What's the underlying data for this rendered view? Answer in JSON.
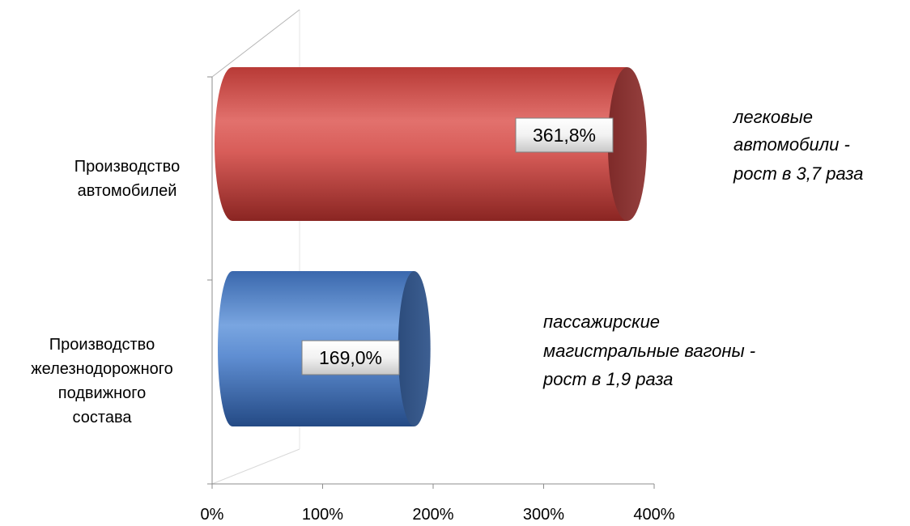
{
  "chart_data": {
    "type": "bar",
    "orientation": "horizontal",
    "style": "3d-cylinder",
    "categories": [
      "Производство автомобилей",
      "Производство железнодорожного подвижного состава"
    ],
    "category_lines": [
      [
        "Производство",
        "автомобилей"
      ],
      [
        "Производство",
        "железнодорожного",
        "подвижного",
        "состава"
      ]
    ],
    "values": [
      361.8,
      169.0
    ],
    "data_labels": [
      "361,8%",
      "169,0%"
    ],
    "bar_colors": [
      "#c94b47",
      "#4a79bf"
    ],
    "xlim": [
      0,
      400
    ],
    "xticks": [
      0,
      100,
      200,
      300,
      400
    ],
    "xtick_labels": [
      "0%",
      "100%",
      "200%",
      "300%",
      "400%"
    ],
    "annotations": [
      [
        "легковые",
        "автомобили -",
        "рост в 3,7 раза"
      ],
      [
        "пассажирские",
        "магистральные вагоны -",
        "рост в 1,9 раза"
      ]
    ],
    "grid": false,
    "legend": "none"
  }
}
